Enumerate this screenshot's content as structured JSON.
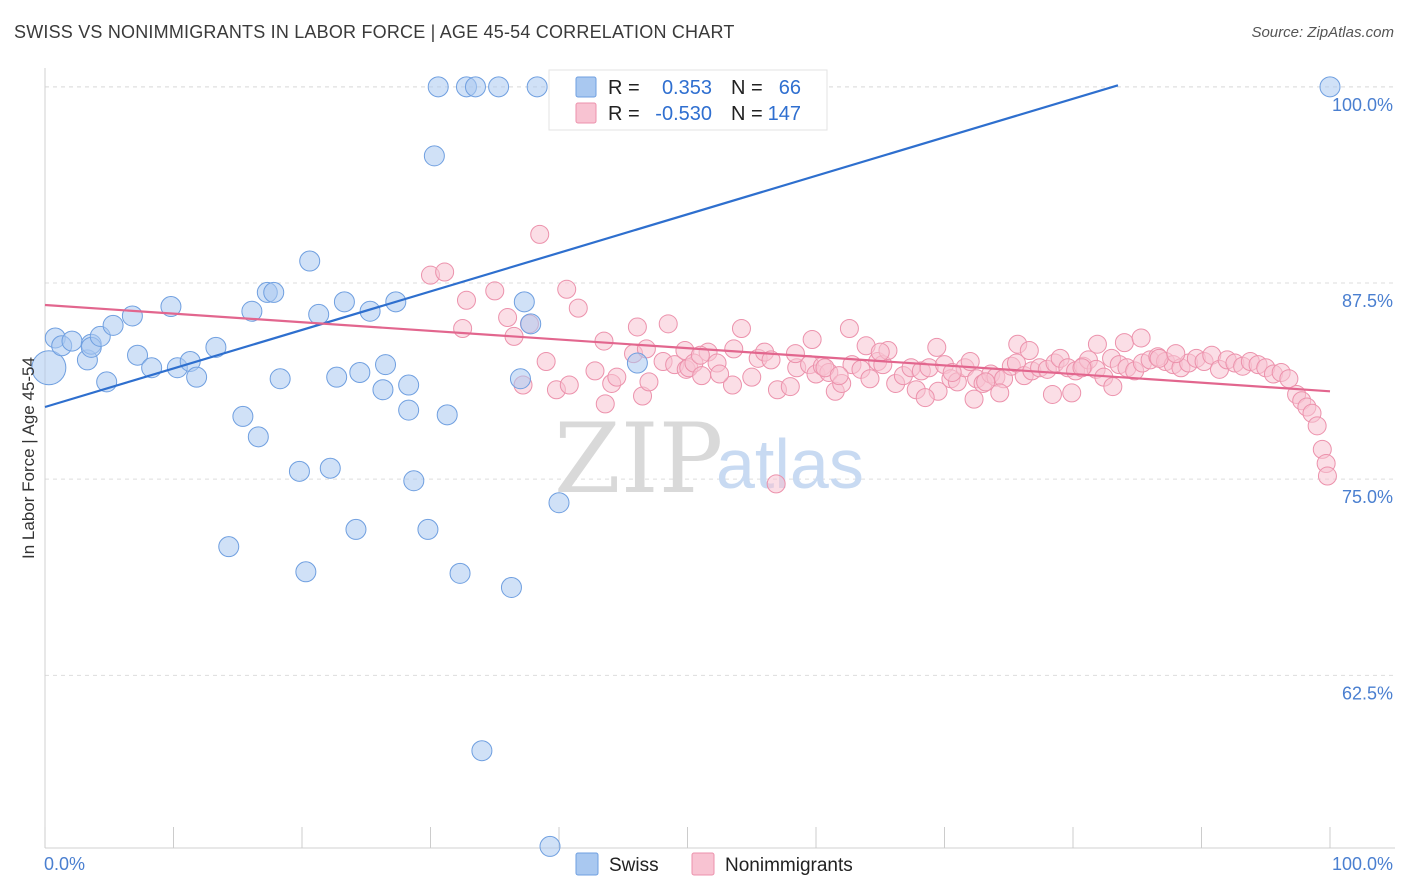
{
  "title": "SWISS VS NONIMMIGRANTS IN LABOR FORCE | AGE 45-54 CORRELATION CHART",
  "source": "Source: ZipAtlas.com",
  "watermark": {
    "part1": "ZIP",
    "part2": "atlas"
  },
  "legend": {
    "r_label": "R =",
    "n_label": "N =",
    "rows": [
      {
        "r": "0.353",
        "n": "66",
        "color": "#a9c8f0",
        "edge": "#6f9fe0"
      },
      {
        "r": "-0.530",
        "n": "147",
        "color": "#f8c3d2",
        "edge": "#ec92ac"
      }
    ]
  },
  "bottom_legend": [
    {
      "label": "Swiss",
      "color": "#a9c8f0",
      "edge": "#6f9fe0"
    },
    {
      "label": "Nonimmigrants",
      "color": "#f8c3d2",
      "edge": "#ec92ac"
    }
  ],
  "chart_data": {
    "type": "scatter",
    "title": "SWISS VS NONIMMIGRANTS IN LABOR FORCE | AGE 45-54 CORRELATION CHART",
    "xlabel": "",
    "ylabel": "In Labor Force | Age 45-54",
    "xlim": [
      0,
      100
    ],
    "ylim": [
      51.5,
      101.2
    ],
    "x_tick_labels": [
      "0.0%",
      "100.0%"
    ],
    "y_ticks": [
      100,
      87.5,
      75,
      62.5
    ],
    "y_tick_labels": [
      "100.0%",
      "87.5%",
      "75.0%",
      "62.5%"
    ],
    "grid": true,
    "series": [
      {
        "name": "Swiss",
        "color": "#6f9fe0",
        "fill": "#a9c8f0",
        "trend": {
          "x": [
            0,
            83.5
          ],
          "y": [
            79.6,
            100.1
          ],
          "color": "#2e6fce"
        },
        "x": [
          0.3,
          0.8,
          1.3,
          2.1,
          3.3,
          3.6,
          3.6,
          4.3,
          4.8,
          5.3,
          6.8,
          7.2,
          8.3,
          9.8,
          10.3,
          11.3,
          11.8,
          13.3,
          14.3,
          15.4,
          16.1,
          16.6,
          17.3,
          17.8,
          18.3,
          19.8,
          20.3,
          20.6,
          21.3,
          22.2,
          22.7,
          23.3,
          24.2,
          24.5,
          25.3,
          26.3,
          26.5,
          27.3,
          28.3,
          28.3,
          28.7,
          29.8,
          30.3,
          30.6,
          31.3,
          32.3,
          32.8,
          33.5,
          34.0,
          35.3,
          36.3,
          37.0,
          37.3,
          37.8,
          38.3,
          39.3,
          40.0,
          40.5,
          41.3,
          42.3,
          44.0,
          46.1,
          46.8,
          48.0,
          49.3,
          100.0
        ],
        "y": [
          82.1,
          84.0,
          83.5,
          83.8,
          82.6,
          83.6,
          83.4,
          84.1,
          81.2,
          84.8,
          85.4,
          82.9,
          82.1,
          86.0,
          82.1,
          82.5,
          81.5,
          83.4,
          70.7,
          79.0,
          85.7,
          77.7,
          86.9,
          86.9,
          81.4,
          75.5,
          69.1,
          88.9,
          85.5,
          75.7,
          81.5,
          86.3,
          71.8,
          81.8,
          85.7,
          80.7,
          82.3,
          86.3,
          79.4,
          81.0,
          74.9,
          71.8,
          95.6,
          100.0,
          79.1,
          69.0,
          100.0,
          100.0,
          57.7,
          100.0,
          68.1,
          81.4,
          86.3,
          84.9,
          100.0,
          51.6,
          73.5,
          100.0,
          100.0,
          100.0,
          100.0,
          82.4,
          100.0,
          100.0,
          100.0,
          100.0
        ],
        "r": [
          17,
          10,
          10,
          10,
          10,
          10,
          10,
          10,
          10,
          10,
          10,
          10,
          10,
          10,
          10,
          10,
          10,
          10,
          10,
          10,
          10,
          10,
          10,
          10,
          10,
          10,
          10,
          10,
          10,
          10,
          10,
          10,
          10,
          10,
          10,
          10,
          10,
          10,
          10,
          10,
          10,
          10,
          10,
          10,
          10,
          10,
          10,
          10,
          10,
          10,
          10,
          10,
          10,
          10,
          10,
          10,
          10,
          10,
          10,
          10,
          10,
          10,
          10,
          10,
          10,
          10
        ]
      },
      {
        "name": "Nonimmigrants",
        "color": "#ec92ac",
        "fill": "#f8c3d2",
        "trend": {
          "x": [
            0,
            100
          ],
          "y": [
            86.1,
            80.6
          ],
          "color": "#e2668e"
        },
        "x": [
          30.0,
          38.5,
          31.1,
          32.8,
          35.0,
          36.0,
          37.7,
          39.0,
          39.8,
          40.6,
          40.8,
          41.5,
          43.5,
          44.1,
          44.5,
          45.8,
          46.1,
          46.5,
          47.0,
          48.1,
          49.0,
          49.8,
          49.9,
          50.1,
          50.5,
          51.1,
          51.6,
          52.3,
          53.5,
          53.6,
          55.0,
          55.5,
          56.0,
          56.5,
          57.0,
          58.0,
          58.5,
          59.5,
          60.0,
          60.5,
          61.0,
          61.5,
          62.0,
          62.8,
          63.5,
          64.2,
          64.8,
          65.2,
          65.6,
          66.2,
          66.8,
          67.4,
          67.8,
          68.2,
          68.8,
          69.5,
          70.0,
          70.5,
          71.0,
          71.6,
          72.0,
          72.5,
          73.0,
          73.6,
          74.0,
          74.6,
          75.2,
          75.6,
          76.2,
          76.8,
          77.4,
          78.0,
          78.6,
          79.0,
          79.6,
          80.2,
          80.8,
          81.2,
          81.8,
          82.4,
          83.0,
          83.6,
          84.2,
          84.8,
          85.4,
          86.0,
          86.6,
          87.2,
          87.8,
          88.4,
          89.0,
          89.6,
          90.2,
          90.8,
          91.4,
          92.0,
          92.6,
          93.2,
          93.8,
          94.4,
          95.0,
          95.6,
          96.2,
          96.8,
          97.4,
          97.8,
          98.2,
          98.6,
          99.0,
          99.4,
          99.7,
          99.8,
          32.5,
          36.5,
          37.2,
          42.8,
          43.6,
          46.8,
          48.5,
          51.0,
          52.5,
          54.2,
          56.9,
          58.4,
          59.7,
          60.7,
          61.8,
          62.6,
          63.9,
          65.0,
          68.5,
          69.4,
          70.6,
          72.3,
          73.2,
          74.3,
          75.7,
          76.6,
          78.4,
          79.9,
          80.7,
          81.9,
          83.1,
          84.0,
          85.3,
          86.7,
          88.0,
          89.3,
          90.5
        ],
        "y": [
          88.0,
          90.6,
          88.2,
          86.4,
          87.0,
          85.3,
          84.9,
          82.5,
          80.7,
          87.1,
          81.0,
          85.9,
          83.8,
          81.1,
          81.5,
          83.0,
          84.7,
          80.3,
          81.2,
          82.5,
          82.3,
          83.2,
          82.0,
          82.1,
          82.4,
          81.6,
          83.1,
          82.4,
          81.0,
          83.3,
          81.5,
          82.7,
          83.1,
          82.6,
          80.7,
          80.9,
          82.1,
          82.3,
          81.7,
          82.2,
          81.8,
          80.6,
          81.1,
          82.3,
          82.0,
          81.4,
          82.5,
          82.3,
          83.2,
          81.1,
          81.6,
          82.1,
          80.7,
          81.9,
          82.1,
          80.6,
          82.3,
          81.4,
          81.2,
          82.1,
          82.5,
          81.4,
          81.1,
          81.7,
          81.5,
          81.4,
          82.2,
          82.4,
          81.6,
          81.9,
          82.1,
          82.0,
          82.4,
          82.7,
          82.1,
          81.9,
          82.2,
          82.6,
          82.0,
          81.5,
          82.7,
          82.3,
          82.1,
          81.9,
          82.4,
          82.6,
          82.8,
          82.5,
          82.3,
          82.1,
          82.4,
          82.7,
          82.5,
          82.9,
          82.0,
          82.6,
          82.4,
          82.2,
          82.5,
          82.3,
          82.1,
          81.7,
          81.8,
          81.4,
          80.4,
          80.0,
          79.6,
          79.2,
          78.4,
          76.9,
          76.0,
          75.2,
          84.6,
          84.1,
          81.0,
          81.9,
          79.8,
          83.3,
          84.9,
          82.9,
          81.7,
          84.6,
          74.7,
          83.0,
          83.9,
          82.1,
          81.6,
          84.6,
          83.5,
          83.1,
          80.2,
          83.4,
          81.8,
          80.1,
          81.2,
          80.5,
          83.6,
          83.2,
          80.4,
          80.5,
          82.1,
          83.6,
          80.9,
          83.7,
          84.0,
          82.7,
          83.0,
          83.1,
          84.2
        ],
        "r": [
          9,
          9,
          9,
          9,
          9,
          9,
          9,
          9,
          9,
          9,
          9,
          9,
          9,
          9,
          9,
          9,
          9,
          9,
          9,
          9,
          9,
          9,
          9,
          9,
          9,
          9,
          9,
          9,
          9,
          9,
          9,
          9,
          9,
          9,
          9,
          9,
          9,
          9,
          9,
          9,
          9,
          9,
          9,
          9,
          9,
          9,
          9,
          9,
          9,
          9,
          9,
          9,
          9,
          9,
          9,
          9,
          9,
          9,
          9,
          9,
          9,
          9,
          9,
          9,
          9,
          9,
          9,
          9,
          9,
          9,
          9,
          9,
          9,
          9,
          9,
          9,
          9,
          9,
          9,
          9,
          9,
          9,
          9,
          9,
          9,
          9,
          9,
          9,
          9,
          9,
          9,
          9,
          9,
          9,
          9,
          9,
          9,
          9,
          9,
          9,
          9,
          9,
          9,
          9,
          9,
          9,
          9,
          9,
          9,
          9,
          9,
          9,
          9,
          9,
          9,
          9,
          9,
          9,
          9,
          9,
          9,
          9,
          9,
          9,
          9,
          9,
          9,
          9,
          9,
          9,
          9,
          9,
          9,
          9,
          9,
          9,
          9,
          9,
          9,
          9,
          9,
          9,
          9,
          9,
          9,
          9,
          9
        ]
      }
    ]
  }
}
